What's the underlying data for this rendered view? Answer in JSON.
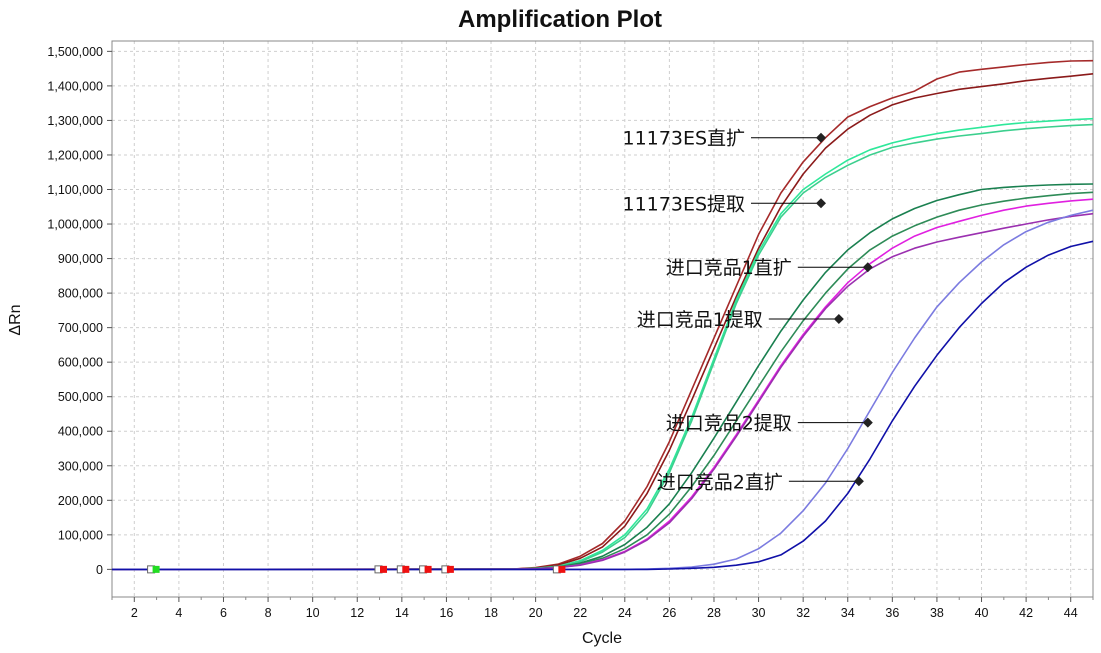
{
  "chart_data": {
    "type": "line",
    "title": "Amplification Plot",
    "xlabel": "Cycle",
    "ylabel": "ΔRn",
    "xlim": [
      1,
      45
    ],
    "ylim": [
      -80000,
      1530000
    ],
    "x_ticks": [
      "2",
      "4",
      "6",
      "8",
      "10",
      "12",
      "14",
      "16",
      "18",
      "20",
      "22",
      "24",
      "26",
      "28",
      "30",
      "32",
      "34",
      "36",
      "38",
      "40",
      "42",
      "44"
    ],
    "y_ticks": [
      "0",
      "100,000",
      "200,000",
      "300,000",
      "400,000",
      "500,000",
      "600,000",
      "700,000",
      "800,000",
      "900,000",
      "1,000,000",
      "1,100,000",
      "1,200,000",
      "1,300,000",
      "1,400,000",
      "1,500,000"
    ],
    "grid": true,
    "colors": {
      "maroon": "#8b1a1a",
      "maroon2": "#a52a2a",
      "seagreen": "#2ee89a",
      "seagreen2": "#3ccf8e",
      "darkgreen": "#1a8050",
      "darkgreen2": "#2e8b57",
      "magenta": "#e020e0",
      "purple": "#9b30b0",
      "lightblue": "#7b7be0",
      "navy": "#1010a8"
    },
    "series": [
      {
        "color": "maroon2",
        "values": [
          [
            1,
            0
          ],
          [
            19,
            1000
          ],
          [
            20,
            5000
          ],
          [
            21,
            15000
          ],
          [
            22,
            38000
          ],
          [
            23,
            75000
          ],
          [
            24,
            140000
          ],
          [
            25,
            240000
          ],
          [
            26,
            370000
          ],
          [
            27,
            520000
          ],
          [
            28,
            670000
          ],
          [
            29,
            820000
          ],
          [
            30,
            970000
          ],
          [
            31,
            1090000
          ],
          [
            32,
            1180000
          ],
          [
            33,
            1250000
          ],
          [
            34,
            1310000
          ],
          [
            35,
            1340000
          ],
          [
            36,
            1365000
          ],
          [
            37,
            1385000
          ],
          [
            38,
            1420000
          ],
          [
            39,
            1440000
          ],
          [
            40,
            1448000
          ],
          [
            41,
            1455000
          ],
          [
            42,
            1462000
          ],
          [
            43,
            1468000
          ],
          [
            44,
            1472000
          ],
          [
            45,
            1473000
          ]
        ]
      },
      {
        "color": "maroon",
        "values": [
          [
            1,
            0
          ],
          [
            19,
            1000
          ],
          [
            20,
            4000
          ],
          [
            21,
            12000
          ],
          [
            22,
            32000
          ],
          [
            23,
            65000
          ],
          [
            24,
            125000
          ],
          [
            25,
            220000
          ],
          [
            26,
            345000
          ],
          [
            27,
            490000
          ],
          [
            28,
            640000
          ],
          [
            29,
            790000
          ],
          [
            30,
            930000
          ],
          [
            31,
            1050000
          ],
          [
            32,
            1145000
          ],
          [
            33,
            1220000
          ],
          [
            34,
            1275000
          ],
          [
            35,
            1315000
          ],
          [
            36,
            1345000
          ],
          [
            37,
            1365000
          ],
          [
            38,
            1378000
          ],
          [
            39,
            1390000
          ],
          [
            40,
            1398000
          ],
          [
            41,
            1406000
          ],
          [
            42,
            1415000
          ],
          [
            43,
            1422000
          ],
          [
            44,
            1428000
          ],
          [
            45,
            1435000
          ]
        ]
      },
      {
        "color": "seagreen",
        "values": [
          [
            1,
            0
          ],
          [
            19,
            500
          ],
          [
            20,
            3000
          ],
          [
            21,
            9000
          ],
          [
            22,
            25000
          ],
          [
            23,
            55000
          ],
          [
            24,
            100000
          ],
          [
            25,
            175000
          ],
          [
            26,
            290000
          ],
          [
            27,
            440000
          ],
          [
            28,
            610000
          ],
          [
            29,
            780000
          ],
          [
            30,
            920000
          ],
          [
            31,
            1030000
          ],
          [
            32,
            1100000
          ],
          [
            33,
            1145000
          ],
          [
            34,
            1185000
          ],
          [
            35,
            1215000
          ],
          [
            36,
            1235000
          ],
          [
            37,
            1250000
          ],
          [
            38,
            1262000
          ],
          [
            39,
            1272000
          ],
          [
            40,
            1280000
          ],
          [
            41,
            1288000
          ],
          [
            42,
            1294000
          ],
          [
            43,
            1298000
          ],
          [
            44,
            1302000
          ],
          [
            45,
            1305000
          ]
        ]
      },
      {
        "color": "seagreen2",
        "values": [
          [
            1,
            0
          ],
          [
            19,
            500
          ],
          [
            20,
            2500
          ],
          [
            21,
            8000
          ],
          [
            22,
            22000
          ],
          [
            23,
            50000
          ],
          [
            24,
            92000
          ],
          [
            25,
            165000
          ],
          [
            26,
            280000
          ],
          [
            27,
            430000
          ],
          [
            28,
            600000
          ],
          [
            29,
            770000
          ],
          [
            30,
            910000
          ],
          [
            31,
            1020000
          ],
          [
            32,
            1090000
          ],
          [
            33,
            1135000
          ],
          [
            34,
            1170000
          ],
          [
            35,
            1200000
          ],
          [
            36,
            1222000
          ],
          [
            37,
            1235000
          ],
          [
            38,
            1246000
          ],
          [
            39,
            1255000
          ],
          [
            40,
            1262000
          ],
          [
            41,
            1270000
          ],
          [
            42,
            1276000
          ],
          [
            43,
            1281000
          ],
          [
            44,
            1285000
          ],
          [
            45,
            1288000
          ]
        ]
      },
      {
        "color": "darkgreen",
        "values": [
          [
            1,
            0
          ],
          [
            19,
            500
          ],
          [
            20,
            2000
          ],
          [
            21,
            7000
          ],
          [
            22,
            18000
          ],
          [
            23,
            38000
          ],
          [
            24,
            72000
          ],
          [
            25,
            122000
          ],
          [
            26,
            190000
          ],
          [
            27,
            280000
          ],
          [
            28,
            380000
          ],
          [
            29,
            485000
          ],
          [
            30,
            590000
          ],
          [
            31,
            690000
          ],
          [
            32,
            780000
          ],
          [
            33,
            860000
          ],
          [
            34,
            925000
          ],
          [
            35,
            975000
          ],
          [
            36,
            1015000
          ],
          [
            37,
            1045000
          ],
          [
            38,
            1068000
          ],
          [
            39,
            1085000
          ],
          [
            40,
            1100000
          ],
          [
            41,
            1106000
          ],
          [
            42,
            1110000
          ],
          [
            43,
            1113000
          ],
          [
            44,
            1115000
          ],
          [
            45,
            1116000
          ]
        ]
      },
      {
        "color": "darkgreen2",
        "values": [
          [
            1,
            0
          ],
          [
            19,
            500
          ],
          [
            20,
            1500
          ],
          [
            21,
            6000
          ],
          [
            22,
            15000
          ],
          [
            23,
            32000
          ],
          [
            24,
            60000
          ],
          [
            25,
            100000
          ],
          [
            26,
            160000
          ],
          [
            27,
            240000
          ],
          [
            28,
            330000
          ],
          [
            29,
            430000
          ],
          [
            30,
            530000
          ],
          [
            31,
            630000
          ],
          [
            32,
            720000
          ],
          [
            33,
            800000
          ],
          [
            34,
            870000
          ],
          [
            35,
            925000
          ],
          [
            36,
            965000
          ],
          [
            37,
            995000
          ],
          [
            38,
            1020000
          ],
          [
            39,
            1040000
          ],
          [
            40,
            1055000
          ],
          [
            41,
            1066000
          ],
          [
            42,
            1075000
          ],
          [
            43,
            1082000
          ],
          [
            44,
            1088000
          ],
          [
            45,
            1092000
          ]
        ]
      },
      {
        "color": "magenta",
        "values": [
          [
            1,
            0
          ],
          [
            19,
            500
          ],
          [
            20,
            1500
          ],
          [
            21,
            5000
          ],
          [
            22,
            13000
          ],
          [
            23,
            28000
          ],
          [
            24,
            52000
          ],
          [
            25,
            88000
          ],
          [
            26,
            140000
          ],
          [
            27,
            210000
          ],
          [
            28,
            295000
          ],
          [
            29,
            390000
          ],
          [
            30,
            490000
          ],
          [
            31,
            590000
          ],
          [
            32,
            680000
          ],
          [
            33,
            760000
          ],
          [
            34,
            830000
          ],
          [
            35,
            885000
          ],
          [
            36,
            930000
          ],
          [
            37,
            965000
          ],
          [
            38,
            990000
          ],
          [
            39,
            1008000
          ],
          [
            40,
            1025000
          ],
          [
            41,
            1040000
          ],
          [
            42,
            1052000
          ],
          [
            43,
            1060000
          ],
          [
            44,
            1067000
          ],
          [
            45,
            1072000
          ]
        ]
      },
      {
        "color": "purple",
        "values": [
          [
            1,
            0
          ],
          [
            19,
            500
          ],
          [
            20,
            1500
          ],
          [
            21,
            5000
          ],
          [
            22,
            12000
          ],
          [
            23,
            26000
          ],
          [
            24,
            50000
          ],
          [
            25,
            85000
          ],
          [
            26,
            135000
          ],
          [
            27,
            205000
          ],
          [
            28,
            290000
          ],
          [
            29,
            385000
          ],
          [
            30,
            485000
          ],
          [
            31,
            585000
          ],
          [
            32,
            675000
          ],
          [
            33,
            755000
          ],
          [
            34,
            820000
          ],
          [
            35,
            870000
          ],
          [
            36,
            905000
          ],
          [
            37,
            930000
          ],
          [
            38,
            948000
          ],
          [
            39,
            962000
          ],
          [
            40,
            975000
          ],
          [
            41,
            988000
          ],
          [
            42,
            1000000
          ],
          [
            43,
            1012000
          ],
          [
            44,
            1022000
          ],
          [
            45,
            1030000
          ]
        ]
      },
      {
        "color": "lightblue",
        "values": [
          [
            1,
            0
          ],
          [
            24,
            0
          ],
          [
            25,
            1000
          ],
          [
            26,
            3000
          ],
          [
            27,
            7000
          ],
          [
            28,
            15000
          ],
          [
            29,
            30000
          ],
          [
            30,
            60000
          ],
          [
            31,
            105000
          ],
          [
            32,
            170000
          ],
          [
            33,
            250000
          ],
          [
            34,
            350000
          ],
          [
            35,
            460000
          ],
          [
            36,
            570000
          ],
          [
            37,
            670000
          ],
          [
            38,
            760000
          ],
          [
            39,
            830000
          ],
          [
            40,
            890000
          ],
          [
            41,
            940000
          ],
          [
            42,
            978000
          ],
          [
            43,
            1005000
          ],
          [
            44,
            1025000
          ],
          [
            45,
            1040000
          ]
        ]
      },
      {
        "color": "navy",
        "values": [
          [
            1,
            0
          ],
          [
            25,
            0
          ],
          [
            26,
            1000
          ],
          [
            27,
            3000
          ],
          [
            28,
            6000
          ],
          [
            29,
            12000
          ],
          [
            30,
            22000
          ],
          [
            31,
            42000
          ],
          [
            32,
            82000
          ],
          [
            33,
            140000
          ],
          [
            34,
            220000
          ],
          [
            35,
            320000
          ],
          [
            36,
            430000
          ],
          [
            37,
            530000
          ],
          [
            38,
            620000
          ],
          [
            39,
            700000
          ],
          [
            40,
            770000
          ],
          [
            41,
            830000
          ],
          [
            42,
            875000
          ],
          [
            43,
            910000
          ],
          [
            44,
            935000
          ],
          [
            45,
            950000
          ]
        ]
      }
    ],
    "annotations": [
      {
        "text": "11173ES直扩",
        "x": 32.8,
        "y": 1250000
      },
      {
        "text": "11173ES提取",
        "x": 32.8,
        "y": 1060000
      },
      {
        "text": "进口竞品1直扩",
        "x": 34.9,
        "y": 875000
      },
      {
        "text": "进口竞品1提取",
        "x": 33.6,
        "y": 725000
      },
      {
        "text": "进口竞品2提取",
        "x": 34.9,
        "y": 425000
      },
      {
        "text": "进口竞品2直扩",
        "x": 34.5,
        "y": 255000
      }
    ],
    "threshold_markers": [
      {
        "x": 3,
        "color": "#22dd22"
      },
      {
        "x": 13.2,
        "color": "#ee1111"
      },
      {
        "x": 14.2,
        "color": "#ee1111"
      },
      {
        "x": 15.2,
        "color": "#ee1111"
      },
      {
        "x": 16.2,
        "color": "#ee1111"
      },
      {
        "x": 21.2,
        "color": "#ee1111"
      }
    ]
  }
}
